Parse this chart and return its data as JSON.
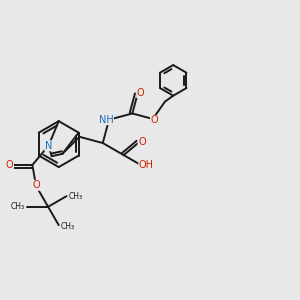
{
  "background_color": "#e8e8e8",
  "bond_color": "#1a1a1a",
  "N_color": "#1a6fb5",
  "O_color": "#cc2200",
  "figsize": [
    3.0,
    3.0
  ],
  "dpi": 100,
  "xlim": [
    0,
    10
  ],
  "ylim": [
    0,
    10
  ]
}
